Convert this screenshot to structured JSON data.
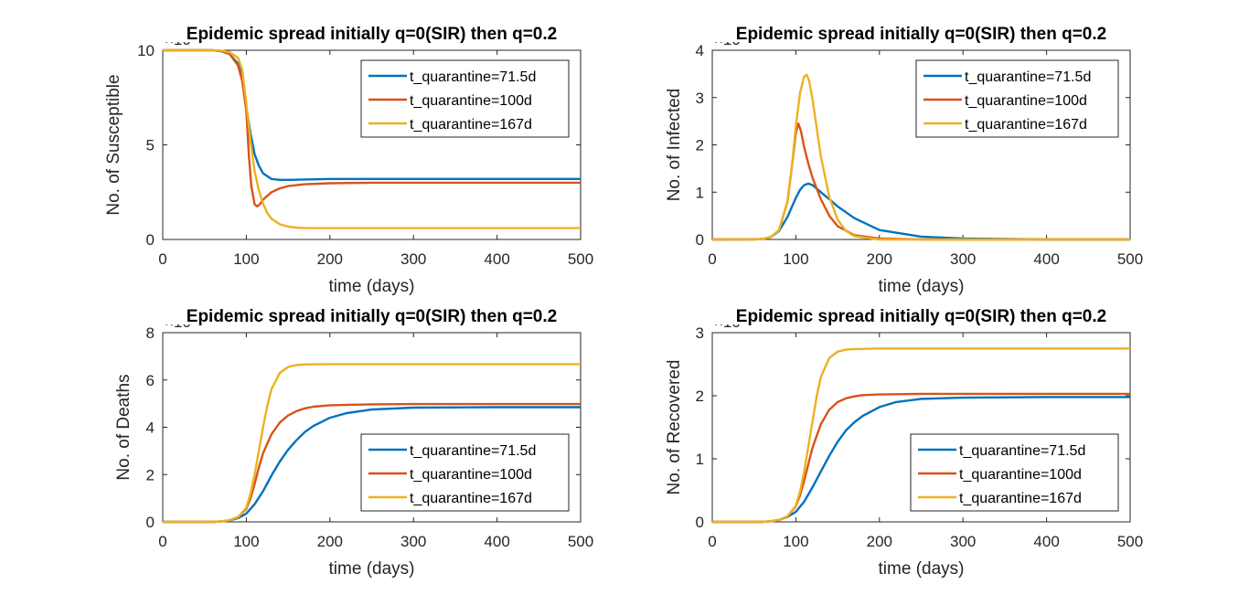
{
  "chart_data": [
    {
      "type": "line",
      "title": "Epidemic spread initially q=0(SIR) then q=0.2",
      "xlabel": "time (days)",
      "ylabel": "No. of Susceptible",
      "exponent": "×10⁶",
      "xlim": [
        0,
        500
      ],
      "ylim": [
        0,
        10
      ],
      "xticks": [
        0,
        100,
        200,
        300,
        400,
        500
      ],
      "yticks": [
        0,
        5,
        10
      ],
      "xtick_labels": [
        "0",
        "100",
        "200",
        "300",
        "400",
        "500"
      ],
      "ytick_labels": [
        "0",
        "5",
        "10"
      ],
      "legend_position": "top-right",
      "series": [
        {
          "name": "t_quarantine=71.5d",
          "color": "#0072BD",
          "x": [
            0,
            60,
            70,
            80,
            90,
            95,
            100,
            105,
            110,
            115,
            120,
            130,
            140,
            150,
            170,
            200,
            300,
            500
          ],
          "y": [
            10,
            10,
            9.95,
            9.8,
            9.3,
            8.6,
            7.0,
            5.6,
            4.5,
            3.9,
            3.5,
            3.2,
            3.15,
            3.15,
            3.17,
            3.2,
            3.2,
            3.2
          ]
        },
        {
          "name": "t_quarantine=100d",
          "color": "#D95319",
          "x": [
            0,
            60,
            70,
            80,
            90,
            95,
            100,
            103,
            106,
            110,
            113,
            116,
            120,
            130,
            140,
            150,
            170,
            200,
            250,
            300,
            500
          ],
          "y": [
            10,
            10,
            9.95,
            9.8,
            9.2,
            8.4,
            6.8,
            4.5,
            2.8,
            1.85,
            1.75,
            1.85,
            2.1,
            2.5,
            2.7,
            2.82,
            2.92,
            2.97,
            3.0,
            3.0,
            3.0
          ]
        },
        {
          "name": "t_quarantine=167d",
          "color": "#EDB120",
          "x": [
            0,
            60,
            70,
            80,
            90,
            95,
            100,
            105,
            110,
            115,
            120,
            125,
            130,
            140,
            150,
            160,
            170,
            200,
            300,
            500
          ],
          "y": [
            10,
            10,
            9.98,
            9.9,
            9.6,
            9.0,
            7.2,
            5.2,
            3.6,
            2.6,
            1.9,
            1.4,
            1.1,
            0.8,
            0.68,
            0.63,
            0.6,
            0.6,
            0.6,
            0.6
          ]
        }
      ]
    },
    {
      "type": "line",
      "title": "Epidemic spread initially q=0(SIR) then q=0.2",
      "xlabel": "time (days)",
      "ylabel": "No. of Infected",
      "exponent": "×10⁶",
      "xlim": [
        0,
        500
      ],
      "ylim": [
        0,
        4
      ],
      "xticks": [
        0,
        100,
        200,
        300,
        400,
        500
      ],
      "yticks": [
        0,
        1,
        2,
        3,
        4
      ],
      "xtick_labels": [
        "0",
        "100",
        "200",
        "300",
        "400",
        "500"
      ],
      "ytick_labels": [
        "0",
        "1",
        "2",
        "3",
        "4"
      ],
      "legend_position": "top-right",
      "series": [
        {
          "name": "t_quarantine=71.5d",
          "color": "#0072BD",
          "x": [
            0,
            50,
            60,
            70,
            80,
            90,
            100,
            105,
            110,
            115,
            120,
            130,
            140,
            150,
            170,
            200,
            250,
            300,
            400,
            500
          ],
          "y": [
            0,
            0.002,
            0.01,
            0.05,
            0.18,
            0.48,
            0.88,
            1.05,
            1.15,
            1.18,
            1.15,
            1.0,
            0.85,
            0.7,
            0.45,
            0.2,
            0.06,
            0.02,
            0.0,
            0.0
          ]
        },
        {
          "name": "t_quarantine=100d",
          "color": "#D95319",
          "x": [
            0,
            50,
            60,
            70,
            80,
            90,
            95,
            100,
            103,
            106,
            110,
            115,
            120,
            130,
            140,
            150,
            170,
            200,
            250,
            500
          ],
          "y": [
            0,
            0.002,
            0.01,
            0.05,
            0.2,
            0.8,
            1.5,
            2.25,
            2.45,
            2.3,
            1.95,
            1.6,
            1.3,
            0.85,
            0.5,
            0.28,
            0.09,
            0.02,
            0.0,
            0.0
          ]
        },
        {
          "name": "t_quarantine=167d",
          "color": "#EDB120",
          "x": [
            0,
            50,
            60,
            70,
            80,
            90,
            95,
            100,
            105,
            110,
            113,
            116,
            120,
            125,
            130,
            140,
            150,
            160,
            170,
            200,
            500
          ],
          "y": [
            0,
            0.002,
            0.01,
            0.05,
            0.2,
            0.8,
            1.5,
            2.4,
            3.1,
            3.45,
            3.48,
            3.35,
            2.95,
            2.35,
            1.75,
            0.9,
            0.42,
            0.18,
            0.07,
            0.0,
            0.0
          ]
        }
      ]
    },
    {
      "type": "line",
      "title": "Epidemic spread initially q=0(SIR) then q=0.2",
      "xlabel": "time (days)",
      "ylabel": "No. of Deaths",
      "exponent": "×10⁴",
      "xlim": [
        0,
        500
      ],
      "ylim": [
        0,
        8
      ],
      "xticks": [
        0,
        100,
        200,
        300,
        400,
        500
      ],
      "yticks": [
        0,
        2,
        4,
        6,
        8
      ],
      "xtick_labels": [
        "0",
        "100",
        "200",
        "300",
        "400",
        "500"
      ],
      "ytick_labels": [
        "0",
        "2",
        "4",
        "6",
        "8"
      ],
      "legend_position": "bottom-right",
      "series": [
        {
          "name": "t_quarantine=71.5d",
          "color": "#0072BD",
          "x": [
            0,
            60,
            70,
            80,
            90,
            100,
            110,
            120,
            130,
            140,
            150,
            160,
            170,
            180,
            200,
            220,
            250,
            300,
            400,
            500
          ],
          "y": [
            0,
            0.0,
            0.02,
            0.06,
            0.16,
            0.35,
            0.75,
            1.3,
            1.95,
            2.55,
            3.05,
            3.45,
            3.8,
            4.05,
            4.4,
            4.6,
            4.75,
            4.83,
            4.85,
            4.85
          ]
        },
        {
          "name": "t_quarantine=100d",
          "color": "#D95319",
          "x": [
            0,
            60,
            70,
            80,
            90,
            100,
            105,
            110,
            115,
            120,
            130,
            140,
            150,
            160,
            170,
            180,
            200,
            250,
            300,
            500
          ],
          "y": [
            0,
            0.0,
            0.02,
            0.07,
            0.2,
            0.55,
            1.0,
            1.6,
            2.3,
            2.9,
            3.7,
            4.2,
            4.5,
            4.68,
            4.8,
            4.87,
            4.93,
            4.97,
            4.98,
            4.98
          ]
        },
        {
          "name": "t_quarantine=167d",
          "color": "#EDB120",
          "x": [
            0,
            60,
            70,
            80,
            90,
            100,
            105,
            110,
            115,
            120,
            125,
            130,
            140,
            150,
            160,
            170,
            200,
            500
          ],
          "y": [
            0,
            0.0,
            0.02,
            0.07,
            0.2,
            0.6,
            1.2,
            2.0,
            3.0,
            4.0,
            4.9,
            5.6,
            6.3,
            6.55,
            6.63,
            6.66,
            6.67,
            6.67
          ]
        }
      ]
    },
    {
      "type": "line",
      "title": "Epidemic spread initially q=0(SIR) then q=0.2",
      "xlabel": "time (days)",
      "ylabel": "No. of Recovered",
      "exponent": "×10⁶",
      "xlim": [
        0,
        500
      ],
      "ylim": [
        0,
        3
      ],
      "xticks": [
        0,
        100,
        200,
        300,
        400,
        500
      ],
      "yticks": [
        0,
        1,
        2,
        3
      ],
      "xtick_labels": [
        "0",
        "100",
        "200",
        "300",
        "400",
        "500"
      ],
      "ytick_labels": [
        "0",
        "1",
        "2",
        "3"
      ],
      "legend_position": "bottom-right",
      "series": [
        {
          "name": "t_quarantine=71.5d",
          "color": "#0072BD",
          "x": [
            0,
            60,
            70,
            80,
            90,
            100,
            110,
            120,
            130,
            140,
            150,
            160,
            170,
            180,
            200,
            220,
            250,
            300,
            400,
            500
          ],
          "y": [
            0,
            0.0,
            0.01,
            0.03,
            0.08,
            0.16,
            0.32,
            0.55,
            0.8,
            1.05,
            1.27,
            1.45,
            1.58,
            1.68,
            1.82,
            1.9,
            1.95,
            1.97,
            1.98,
            1.98
          ]
        },
        {
          "name": "t_quarantine=100d",
          "color": "#D95319",
          "x": [
            0,
            60,
            70,
            80,
            90,
            100,
            105,
            110,
            115,
            120,
            130,
            140,
            150,
            160,
            170,
            180,
            200,
            250,
            300,
            500
          ],
          "y": [
            0,
            0.0,
            0.01,
            0.03,
            0.09,
            0.25,
            0.42,
            0.65,
            0.92,
            1.18,
            1.55,
            1.78,
            1.9,
            1.96,
            1.99,
            2.01,
            2.02,
            2.03,
            2.03,
            2.03
          ]
        },
        {
          "name": "t_quarantine=167d",
          "color": "#EDB120",
          "x": [
            0,
            60,
            70,
            80,
            90,
            100,
            105,
            110,
            115,
            120,
            125,
            130,
            140,
            150,
            160,
            170,
            200,
            500
          ],
          "y": [
            0,
            0.0,
            0.01,
            0.03,
            0.09,
            0.26,
            0.48,
            0.8,
            1.2,
            1.6,
            2.0,
            2.3,
            2.6,
            2.7,
            2.73,
            2.74,
            2.75,
            2.75
          ]
        }
      ]
    }
  ]
}
